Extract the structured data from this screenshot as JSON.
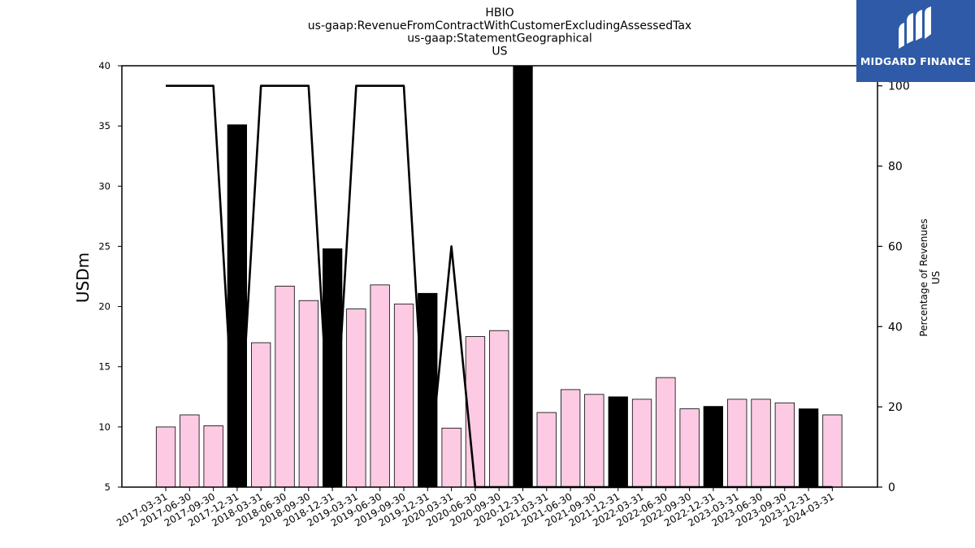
{
  "chart_data": {
    "type": "bar+line",
    "title_lines": [
      "HBIO",
      "us-gaap:RevenueFromContractWithCustomerExcludingAssessedTax",
      "us-gaap:StatementGeographical",
      "US"
    ],
    "ylabel": "USDm",
    "y2label_lines": [
      "Percentage of Revenues",
      "US"
    ],
    "ylim": [
      5,
      40
    ],
    "y2lim": [
      0,
      105
    ],
    "yticks": [
      5,
      10,
      15,
      20,
      25,
      30,
      35,
      40
    ],
    "y2ticks": [
      0,
      20,
      40,
      60,
      80,
      100
    ],
    "categories": [
      "2017-03-31",
      "2017-06-30",
      "2017-09-30",
      "2017-12-31",
      "2018-03-31",
      "2018-06-30",
      "2018-09-30",
      "2018-12-31",
      "2019-03-31",
      "2019-06-30",
      "2019-09-30",
      "2019-12-31",
      "2020-03-31",
      "2020-06-30",
      "2020-09-30",
      "2020-12-31",
      "2021-03-31",
      "2021-06-30",
      "2021-09-30",
      "2021-12-31",
      "2022-03-31",
      "2022-06-30",
      "2022-09-30",
      "2022-12-31",
      "2023-03-31",
      "2023-06-30",
      "2023-09-30",
      "2023-12-31",
      "2024-03-31"
    ],
    "values": [
      10.0,
      11.0,
      10.1,
      35.1,
      17.0,
      21.7,
      20.5,
      24.8,
      19.8,
      21.8,
      20.2,
      21.1,
      9.9,
      17.5,
      18.0,
      40.5,
      11.2,
      13.1,
      12.7,
      12.5,
      12.3,
      14.1,
      11.5,
      11.7,
      12.3,
      12.3,
      12.0,
      11.5,
      11.0
    ],
    "bar_highlight": [
      false,
      false,
      false,
      true,
      false,
      false,
      false,
      true,
      false,
      false,
      false,
      true,
      false,
      false,
      false,
      true,
      false,
      false,
      false,
      true,
      false,
      false,
      false,
      true,
      false,
      false,
      false,
      true,
      false
    ],
    "percent_line": [
      100,
      100,
      100,
      0,
      100,
      100,
      100,
      0,
      100,
      100,
      100,
      0,
      60,
      0,
      0,
      0,
      0,
      0,
      0,
      0,
      0,
      0,
      0,
      0,
      0,
      0,
      0,
      0,
      0
    ],
    "colors": {
      "bar": "#fccae3",
      "bar_highlight": "#000000",
      "line": "#000000",
      "logo_bg": "#2e5aa8"
    }
  },
  "logo": {
    "text": "MIDGARD FINANCE"
  }
}
